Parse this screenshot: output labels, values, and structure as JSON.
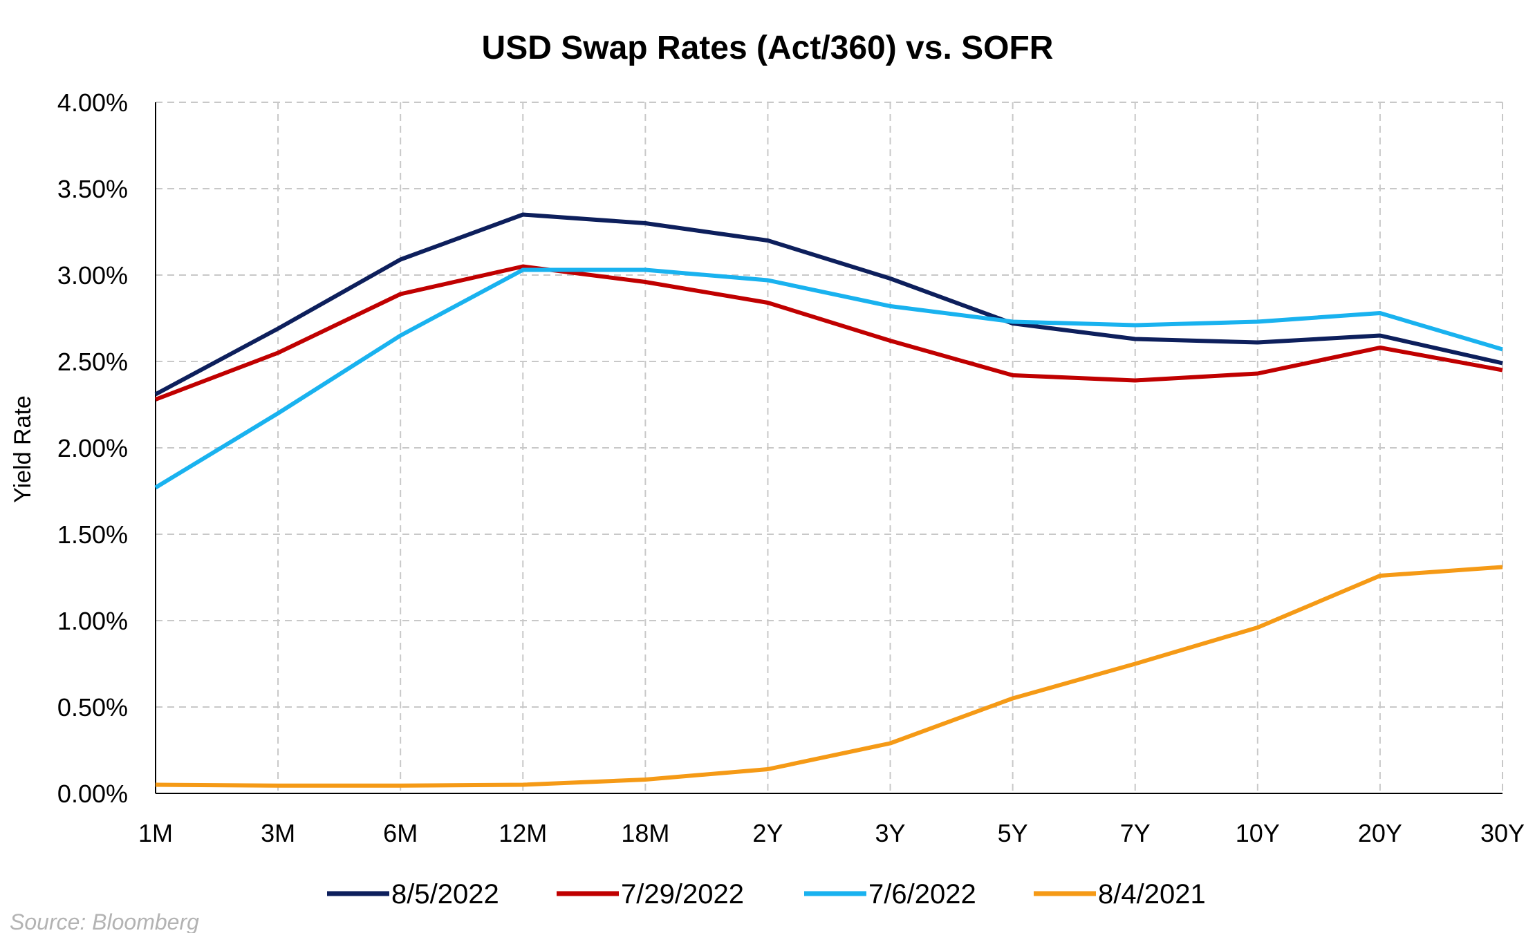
{
  "chart_data": {
    "type": "line",
    "title": "USD Swap Rates (Act/360) vs. SOFR",
    "xlabel": "",
    "ylabel": "Yield Rate",
    "categories": [
      "1M",
      "3M",
      "6M",
      "12M",
      "18M",
      "2Y",
      "3Y",
      "5Y",
      "7Y",
      "10Y",
      "20Y",
      "30Y"
    ],
    "ylim": [
      0,
      4
    ],
    "y_ticks": [
      0,
      0.5,
      1,
      1.5,
      2,
      2.5,
      3,
      3.5,
      4
    ],
    "y_tick_labels": [
      "0.00%",
      "0.50%",
      "1.00%",
      "1.50%",
      "2.00%",
      "2.50%",
      "3.00%",
      "3.50%",
      "4.00%"
    ],
    "grid": true,
    "legend_position": "bottom",
    "series": [
      {
        "name": "8/5/2022",
        "color": "#0d1f5c",
        "values": [
          2.31,
          2.69,
          3.09,
          3.35,
          3.3,
          3.2,
          2.98,
          2.72,
          2.63,
          2.61,
          2.65,
          2.49
        ]
      },
      {
        "name": "7/29/2022",
        "color": "#c00000",
        "values": [
          2.28,
          2.55,
          2.89,
          3.05,
          2.96,
          2.84,
          2.62,
          2.42,
          2.39,
          2.43,
          2.58,
          2.45
        ]
      },
      {
        "name": "7/6/2022",
        "color": "#19b2ef",
        "values": [
          1.77,
          2.2,
          2.65,
          3.03,
          3.03,
          2.97,
          2.82,
          2.73,
          2.71,
          2.73,
          2.78,
          2.57
        ]
      },
      {
        "name": "8/4/2021",
        "color": "#f59a16",
        "values": [
          0.05,
          0.045,
          0.045,
          0.05,
          0.08,
          0.14,
          0.29,
          0.55,
          0.75,
          0.96,
          1.26,
          1.31
        ]
      }
    ],
    "source": "Source: Bloomberg"
  }
}
